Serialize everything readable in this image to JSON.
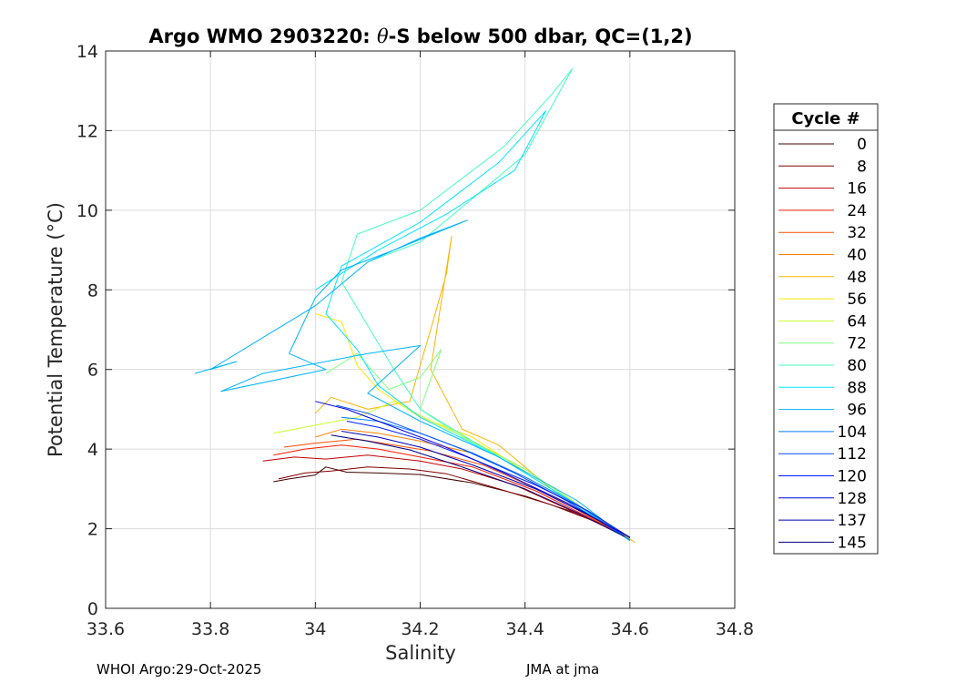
{
  "chart_data": {
    "type": "line",
    "title": "Argo WMO 2903220: θ-S below 500 dbar,  QC=(1,2)",
    "title_prefix": "Argo WMO 2903220: ",
    "title_symbol": "θ",
    "title_suffix": "-S below 500 dbar,  QC=(1,2)",
    "xlabel": "Salinity",
    "ylabel": "Potential Temperature (°C)",
    "ylabel_main": "Potential Temperature (",
    "ylabel_unit": "°C",
    "ylabel_close": ")",
    "xlim": [
      33.6,
      34.8
    ],
    "ylim": [
      0,
      14
    ],
    "xticks": [
      "33.6",
      "33.8",
      "34",
      "34.2",
      "34.4",
      "34.6",
      "34.8"
    ],
    "yticks": [
      "0",
      "2",
      "4",
      "6",
      "8",
      "10",
      "12",
      "14"
    ],
    "grid": true,
    "colormap": "jet",
    "legend": {
      "title": "Cycle #",
      "placement": "outside-right",
      "entries": [
        {
          "label": "0",
          "color": "#400000"
        },
        {
          "label": "8",
          "color": "#800000"
        },
        {
          "label": "16",
          "color": "#bf0000"
        },
        {
          "label": "24",
          "color": "#ff1a00"
        },
        {
          "label": "32",
          "color": "#ff4d00"
        },
        {
          "label": "40",
          "color": "#ff8000"
        },
        {
          "label": "48",
          "color": "#ffb300"
        },
        {
          "label": "56",
          "color": "#ffe600"
        },
        {
          "label": "64",
          "color": "#c8ff2e"
        },
        {
          "label": "72",
          "color": "#80ff80"
        },
        {
          "label": "80",
          "color": "#40ffbf"
        },
        {
          "label": "88",
          "color": "#00e6ff"
        },
        {
          "label": "96",
          "color": "#00b3ff"
        },
        {
          "label": "104",
          "color": "#0080ff"
        },
        {
          "label": "112",
          "color": "#004dff"
        },
        {
          "label": "120",
          "color": "#001aff"
        },
        {
          "label": "128",
          "color": "#0000e6"
        },
        {
          "label": "137",
          "color": "#0000b3"
        },
        {
          "label": "145",
          "color": "#000080"
        }
      ]
    },
    "series": [
      {
        "color": "#400000",
        "points": [
          [
            33.92,
            3.18
          ],
          [
            33.95,
            3.25
          ],
          [
            34.0,
            3.35
          ],
          [
            34.02,
            3.55
          ],
          [
            34.06,
            3.42
          ],
          [
            34.12,
            3.4
          ],
          [
            34.2,
            3.36
          ],
          [
            34.3,
            3.15
          ],
          [
            34.4,
            2.82
          ],
          [
            34.5,
            2.38
          ],
          [
            34.6,
            1.78
          ]
        ]
      },
      {
        "color": "#800000",
        "points": [
          [
            33.93,
            3.25
          ],
          [
            33.98,
            3.4
          ],
          [
            34.03,
            3.45
          ],
          [
            34.1,
            3.55
          ],
          [
            34.18,
            3.5
          ],
          [
            34.25,
            3.38
          ],
          [
            34.35,
            3.0
          ],
          [
            34.45,
            2.6
          ],
          [
            34.55,
            2.1
          ],
          [
            34.6,
            1.77
          ]
        ]
      },
      {
        "color": "#bf0000",
        "points": [
          [
            33.9,
            3.7
          ],
          [
            33.96,
            3.8
          ],
          [
            34.02,
            3.75
          ],
          [
            34.1,
            3.85
          ],
          [
            34.2,
            3.7
          ],
          [
            34.28,
            3.5
          ],
          [
            34.38,
            3.1
          ],
          [
            34.48,
            2.5
          ],
          [
            34.6,
            1.76
          ]
        ]
      },
      {
        "color": "#ff1a00",
        "points": [
          [
            33.92,
            3.85
          ],
          [
            33.98,
            4.0
          ],
          [
            34.05,
            4.1
          ],
          [
            34.12,
            4.0
          ],
          [
            34.2,
            3.8
          ],
          [
            34.3,
            3.55
          ],
          [
            34.42,
            2.95
          ],
          [
            34.52,
            2.3
          ],
          [
            34.6,
            1.75
          ]
        ]
      },
      {
        "color": "#ff4d00",
        "points": [
          [
            33.94,
            4.05
          ],
          [
            34.0,
            4.15
          ],
          [
            34.08,
            4.25
          ],
          [
            34.15,
            4.1
          ],
          [
            34.22,
            3.95
          ],
          [
            34.32,
            3.6
          ],
          [
            34.44,
            2.9
          ],
          [
            34.6,
            1.76
          ]
        ]
      },
      {
        "color": "#ff8000",
        "points": [
          [
            34.0,
            4.3
          ],
          [
            34.05,
            4.5
          ],
          [
            34.12,
            4.4
          ],
          [
            34.2,
            4.2
          ],
          [
            34.3,
            3.9
          ],
          [
            34.4,
            3.3
          ],
          [
            34.5,
            2.6
          ],
          [
            34.6,
            1.75
          ]
        ]
      },
      {
        "color": "#ffb300",
        "points": [
          [
            34.0,
            4.9
          ],
          [
            34.03,
            5.3
          ],
          [
            34.1,
            5.0
          ],
          [
            34.18,
            5.2
          ],
          [
            34.22,
            7.0
          ],
          [
            34.25,
            8.4
          ],
          [
            34.26,
            9.35
          ],
          [
            34.22,
            6.0
          ],
          [
            34.28,
            4.5
          ],
          [
            34.35,
            4.1
          ],
          [
            34.45,
            3.0
          ],
          [
            34.55,
            2.2
          ],
          [
            34.61,
            1.65
          ]
        ]
      },
      {
        "color": "#ffe600",
        "points": [
          [
            34.0,
            7.4
          ],
          [
            34.05,
            7.2
          ],
          [
            34.08,
            6.1
          ],
          [
            34.12,
            5.5
          ],
          [
            34.2,
            4.8
          ],
          [
            34.3,
            4.3
          ],
          [
            34.38,
            3.6
          ],
          [
            34.48,
            2.8
          ],
          [
            34.6,
            1.7
          ]
        ]
      },
      {
        "color": "#c8ff2e",
        "points": [
          [
            33.92,
            4.4
          ],
          [
            34.0,
            4.6
          ],
          [
            34.08,
            4.8
          ],
          [
            34.15,
            5.2
          ],
          [
            34.22,
            4.7
          ],
          [
            34.3,
            4.2
          ],
          [
            34.4,
            3.5
          ],
          [
            34.5,
            2.6
          ],
          [
            34.6,
            1.72
          ]
        ]
      },
      {
        "color": "#80ff80",
        "points": [
          [
            34.02,
            5.9
          ],
          [
            34.08,
            6.4
          ],
          [
            34.14,
            5.5
          ],
          [
            34.2,
            5.8
          ],
          [
            34.24,
            6.5
          ],
          [
            34.2,
            5.0
          ],
          [
            34.28,
            4.3
          ],
          [
            34.4,
            3.5
          ],
          [
            34.6,
            1.7
          ]
        ]
      },
      {
        "color": "#40ffbf",
        "points": [
          [
            34.1,
            8.7
          ],
          [
            34.2,
            9.2
          ],
          [
            34.3,
            10.3
          ],
          [
            34.4,
            11.4
          ],
          [
            34.49,
            13.55
          ],
          [
            34.45,
            12.9
          ],
          [
            34.36,
            11.6
          ],
          [
            34.2,
            10.0
          ],
          [
            34.08,
            9.4
          ],
          [
            34.05,
            8.2
          ],
          [
            34.1,
            7.1
          ],
          [
            34.15,
            6.0
          ],
          [
            34.2,
            5.0
          ],
          [
            34.3,
            4.2
          ],
          [
            34.45,
            3.0
          ],
          [
            34.6,
            1.72
          ]
        ]
      },
      {
        "color": "#00e6ff",
        "points": [
          [
            34.0,
            8.0
          ],
          [
            34.12,
            9.0
          ],
          [
            34.25,
            9.9
          ],
          [
            34.38,
            11.0
          ],
          [
            34.44,
            12.5
          ],
          [
            34.35,
            11.2
          ],
          [
            34.2,
            9.7
          ],
          [
            34.05,
            8.6
          ],
          [
            34.02,
            7.4
          ],
          [
            34.08,
            6.5
          ],
          [
            34.12,
            5.6
          ],
          [
            34.2,
            4.8
          ],
          [
            34.35,
            3.8
          ],
          [
            34.5,
            2.6
          ],
          [
            34.6,
            1.7
          ]
        ]
      },
      {
        "color": "#00b3ff",
        "points": [
          [
            33.77,
            5.9
          ],
          [
            33.85,
            6.2
          ],
          [
            33.8,
            6.0
          ],
          [
            33.9,
            6.8
          ],
          [
            34.0,
            7.6
          ],
          [
            34.1,
            8.7
          ],
          [
            34.2,
            9.3
          ],
          [
            34.29,
            9.75
          ],
          [
            34.15,
            9.0
          ],
          [
            34.05,
            8.5
          ],
          [
            34.0,
            7.8
          ],
          [
            33.95,
            6.4
          ],
          [
            34.02,
            6.0
          ],
          [
            33.82,
            5.45
          ],
          [
            33.9,
            5.9
          ],
          [
            34.1,
            6.4
          ],
          [
            34.2,
            6.6
          ],
          [
            34.1,
            5.4
          ],
          [
            34.2,
            4.7
          ],
          [
            34.35,
            3.8
          ],
          [
            34.5,
            2.7
          ],
          [
            34.6,
            1.7
          ]
        ]
      },
      {
        "color": "#0080ff",
        "points": [
          [
            34.05,
            4.8
          ],
          [
            34.12,
            4.7
          ],
          [
            34.2,
            4.4
          ],
          [
            34.3,
            3.9
          ],
          [
            34.4,
            3.3
          ],
          [
            34.5,
            2.6
          ],
          [
            34.6,
            1.72
          ]
        ]
      },
      {
        "color": "#004dff",
        "points": [
          [
            34.04,
            5.1
          ],
          [
            34.1,
            4.9
          ],
          [
            34.18,
            4.5
          ],
          [
            34.28,
            4.0
          ],
          [
            34.38,
            3.4
          ],
          [
            34.48,
            2.7
          ],
          [
            34.59,
            1.8
          ]
        ]
      },
      {
        "color": "#001aff",
        "points": [
          [
            34.06,
            4.7
          ],
          [
            34.12,
            4.55
          ],
          [
            34.2,
            4.25
          ],
          [
            34.3,
            3.75
          ],
          [
            34.42,
            3.1
          ],
          [
            34.52,
            2.45
          ],
          [
            34.6,
            1.78
          ]
        ]
      },
      {
        "color": "#0000e6",
        "points": [
          [
            34.0,
            5.2
          ],
          [
            34.06,
            5.0
          ],
          [
            34.14,
            4.6
          ],
          [
            34.24,
            4.1
          ],
          [
            34.36,
            3.4
          ],
          [
            34.48,
            2.65
          ],
          [
            34.6,
            1.78
          ]
        ]
      },
      {
        "color": "#0000b3",
        "points": [
          [
            34.05,
            4.45
          ],
          [
            34.12,
            4.3
          ],
          [
            34.2,
            4.05
          ],
          [
            34.3,
            3.6
          ],
          [
            34.42,
            3.0
          ],
          [
            34.52,
            2.35
          ],
          [
            34.6,
            1.79
          ]
        ]
      },
      {
        "color": "#000080",
        "points": [
          [
            34.03,
            4.35
          ],
          [
            34.1,
            4.2
          ],
          [
            34.18,
            3.98
          ],
          [
            34.28,
            3.55
          ],
          [
            34.4,
            3.0
          ],
          [
            34.5,
            2.4
          ],
          [
            34.59,
            1.8
          ]
        ]
      }
    ]
  },
  "footer": {
    "left": "WHOI Argo:29-Oct-2025",
    "right": "JMA at jma"
  }
}
